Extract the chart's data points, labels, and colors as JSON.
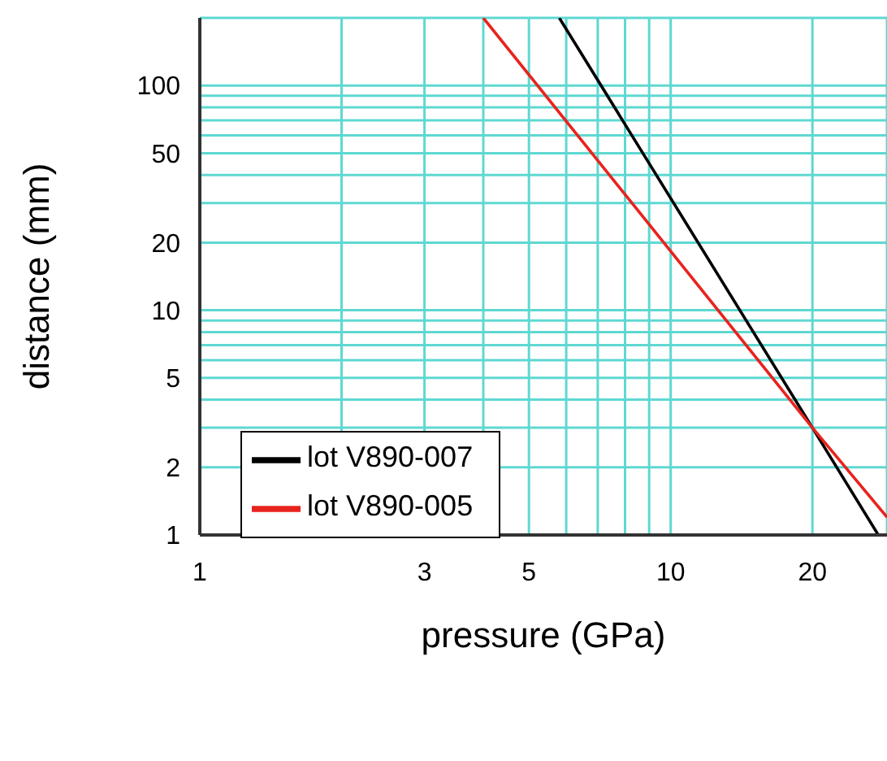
{
  "chart_data": {
    "type": "line",
    "xlabel": "pressure (GPa)",
    "ylabel": "distance (mm)",
    "log": "xy",
    "xlim": [
      1,
      28.8
    ],
    "ylim": [
      1,
      200
    ],
    "xticks": [
      1,
      {
        "value": 2,
        "label": null
      },
      3,
      {
        "value": 4,
        "label": null
      },
      5,
      {
        "value": 6,
        "label": null
      },
      {
        "value": 7,
        "label": null
      },
      {
        "value": 8,
        "label": null
      },
      {
        "value": 9,
        "label": null
      },
      10,
      20
    ],
    "yticks": [
      1,
      2,
      {
        "value": 3,
        "label": null
      },
      {
        "value": 4,
        "label": null
      },
      5,
      {
        "value": 6,
        "label": null
      },
      {
        "value": 7,
        "label": null
      },
      {
        "value": 8,
        "label": null
      },
      {
        "value": 9,
        "label": null
      },
      10,
      20,
      {
        "value": 30,
        "label": null
      },
      {
        "value": 40,
        "label": null
      },
      50,
      {
        "value": 60,
        "label": null
      },
      {
        "value": 70,
        "label": null
      },
      {
        "value": 80,
        "label": null
      },
      {
        "value": 90,
        "label": null
      },
      100
    ],
    "grid": true,
    "legend": "bottom left",
    "marker": "none",
    "line_style": "solid",
    "series": [
      {
        "name": "lot V890-007",
        "color": "#000000",
        "x": [
          5.8,
          20,
          27.6
        ],
        "values": [
          200,
          3,
          1
        ]
      },
      {
        "name": "lot V890-005",
        "color": "#e8231e",
        "x": [
          4,
          20,
          28.8
        ],
        "values": [
          200,
          3,
          1.2
        ]
      }
    ]
  }
}
